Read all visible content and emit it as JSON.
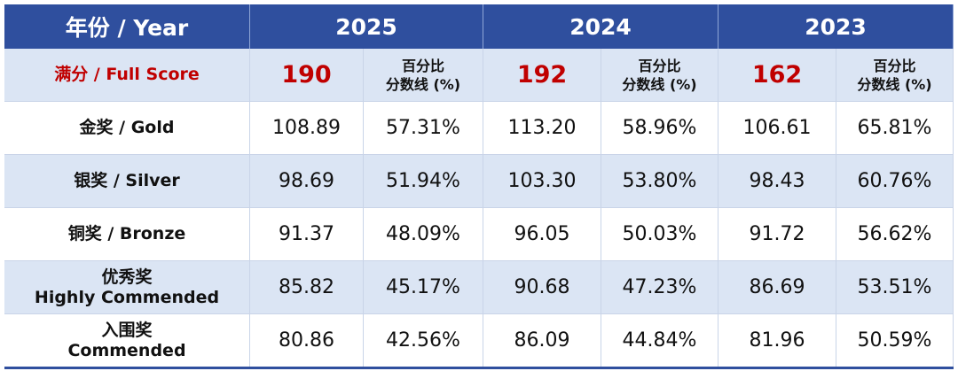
{
  "table": {
    "header": [
      "年份 / Year",
      "2025",
      "2024",
      "2023"
    ],
    "full_score": {
      "label": "满分 / Full Score",
      "cells": [
        {
          "score": "190",
          "pct_header": [
            "百分比",
            "分数线 (%)"
          ]
        },
        {
          "score": "192",
          "pct_header": [
            "百分比",
            "分数线 (%)"
          ]
        },
        {
          "score": "162",
          "pct_header": [
            "百分比",
            "分数线 (%)"
          ]
        }
      ]
    },
    "rows": [
      {
        "label": [
          "金奖 / Gold"
        ],
        "cells": [
          "108.89",
          "57.31%",
          "113.20",
          "58.96%",
          "106.61",
          "65.81%"
        ]
      },
      {
        "label": [
          "银奖 / Silver"
        ],
        "cells": [
          "98.69",
          "51.94%",
          "103.30",
          "53.80%",
          "98.43",
          "60.76%"
        ]
      },
      {
        "label": [
          "铜奖 / Bronze"
        ],
        "cells": [
          "91.37",
          "48.09%",
          "96.05",
          "50.03%",
          "91.72",
          "56.62%"
        ]
      },
      {
        "label": [
          "优秀奖",
          "Highly Commended"
        ],
        "cells": [
          "85.82",
          "45.17%",
          "90.68",
          "47.23%",
          "86.69",
          "53.51%"
        ]
      },
      {
        "label": [
          "入围奖",
          "Commended"
        ],
        "cells": [
          "80.86",
          "42.56%",
          "86.09",
          "44.84%",
          "81.96",
          "50.59%"
        ]
      }
    ]
  }
}
